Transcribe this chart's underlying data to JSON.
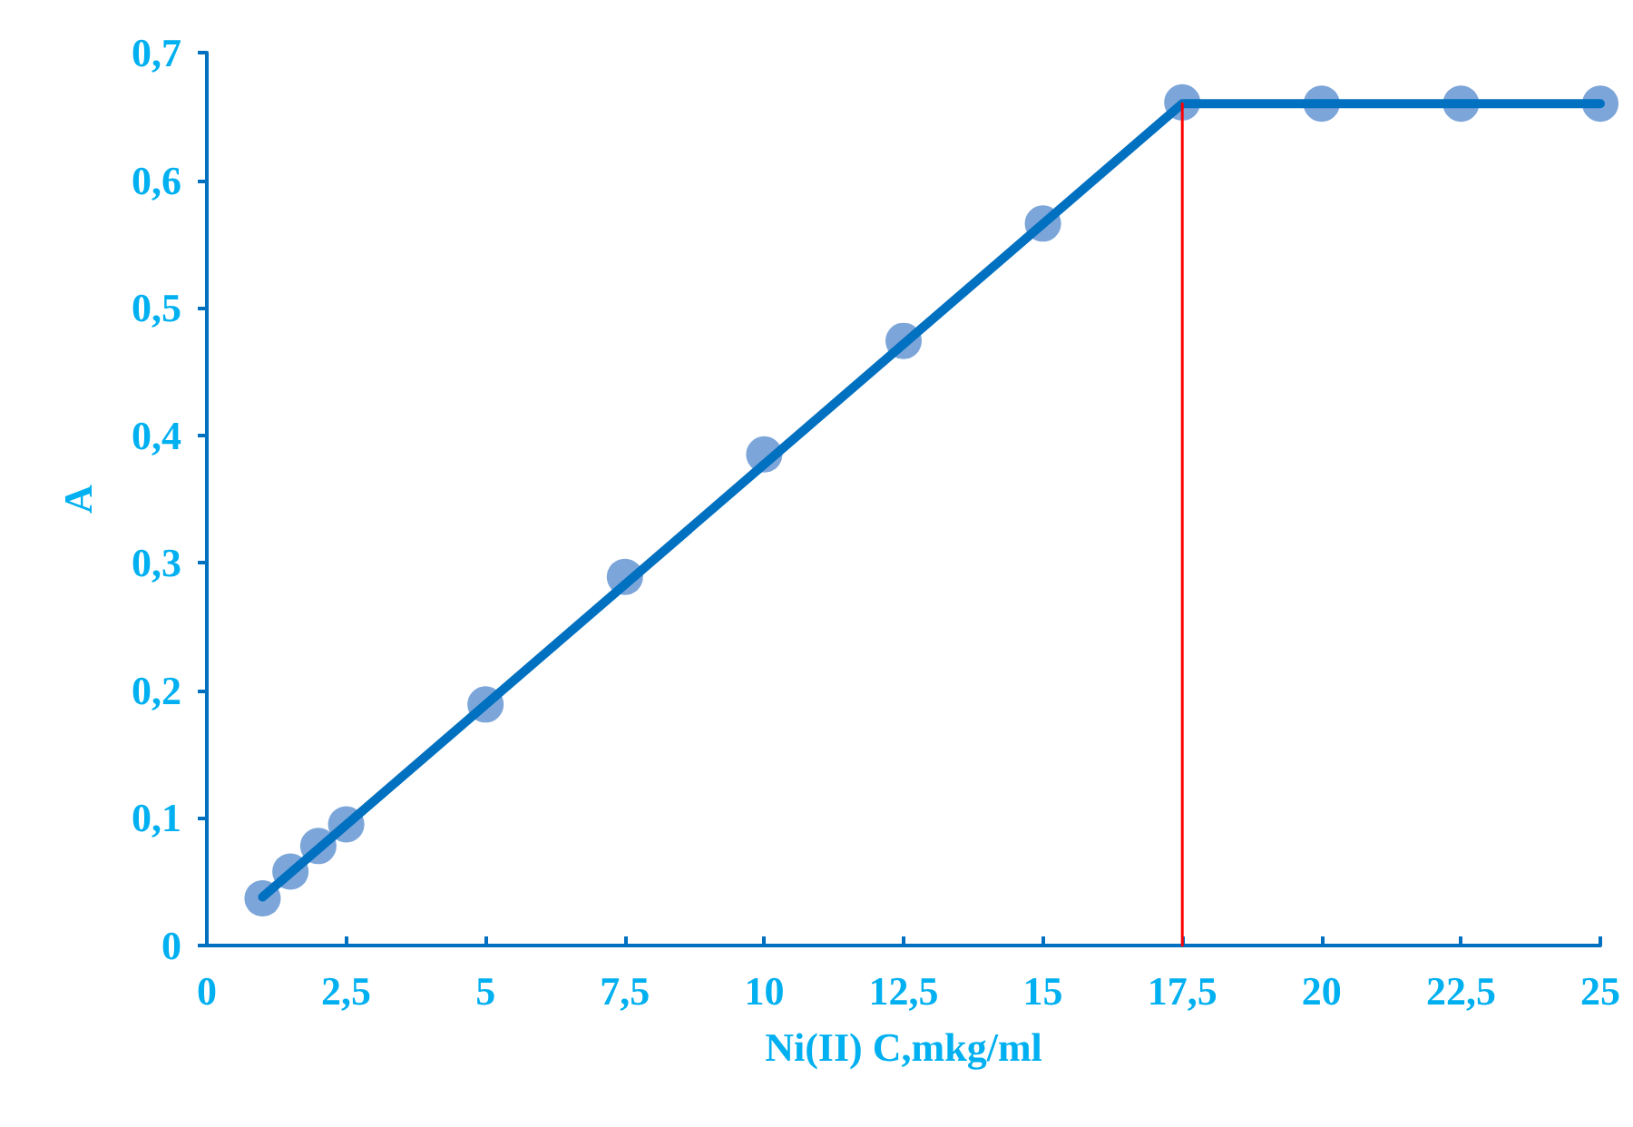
{
  "chart_data": {
    "type": "scatter",
    "xlabel": "Ni(II) C,mkg/ml",
    "ylabel": "A",
    "xlim": [
      0,
      25
    ],
    "ylim": [
      0,
      0.7
    ],
    "xticks": [
      0,
      {
        "value": 2.5,
        "label": "2,5"
      },
      5,
      {
        "value": 7.5,
        "label": "7,5"
      },
      10,
      {
        "value": 12.5,
        "label": "12,5"
      },
      15,
      {
        "value": 17.5,
        "label": "17,5"
      },
      20,
      {
        "value": 22.5,
        "label": "22,5"
      },
      25
    ],
    "yticks": [
      0,
      {
        "value": 0.1,
        "label": "0,1"
      },
      {
        "value": 0.2,
        "label": "0,2"
      },
      {
        "value": 0.3,
        "label": "0,3"
      },
      {
        "value": 0.4,
        "label": "0,4"
      },
      {
        "value": 0.5,
        "label": "0,5"
      },
      {
        "value": 0.6,
        "label": "0,6"
      },
      {
        "value": 0.7,
        "label": "0,7"
      }
    ],
    "grid": false,
    "marker": "circle",
    "series": [
      {
        "type": "line",
        "color": "#0070c0",
        "marker": "none",
        "x": [
          1,
          17.5,
          25
        ],
        "values": [
          0.038,
          0.66,
          0.66
        ]
      },
      {
        "type": "line",
        "color": "#ff0000",
        "marker": "none",
        "x": [
          17.5,
          17.5
        ],
        "values": [
          0,
          0.66
        ]
      },
      {
        "color": "#5b8fd0",
        "x": [
          1,
          1.5,
          2,
          2.5,
          5,
          7.5,
          10,
          12.5,
          15,
          17.5,
          20,
          22.5,
          25
        ],
        "values": [
          0.037,
          0.058,
          0.078,
          0.095,
          0.189,
          0.289,
          0.385,
          0.474,
          0.566,
          0.661,
          0.66,
          0.66,
          0.66
        ]
      }
    ]
  }
}
